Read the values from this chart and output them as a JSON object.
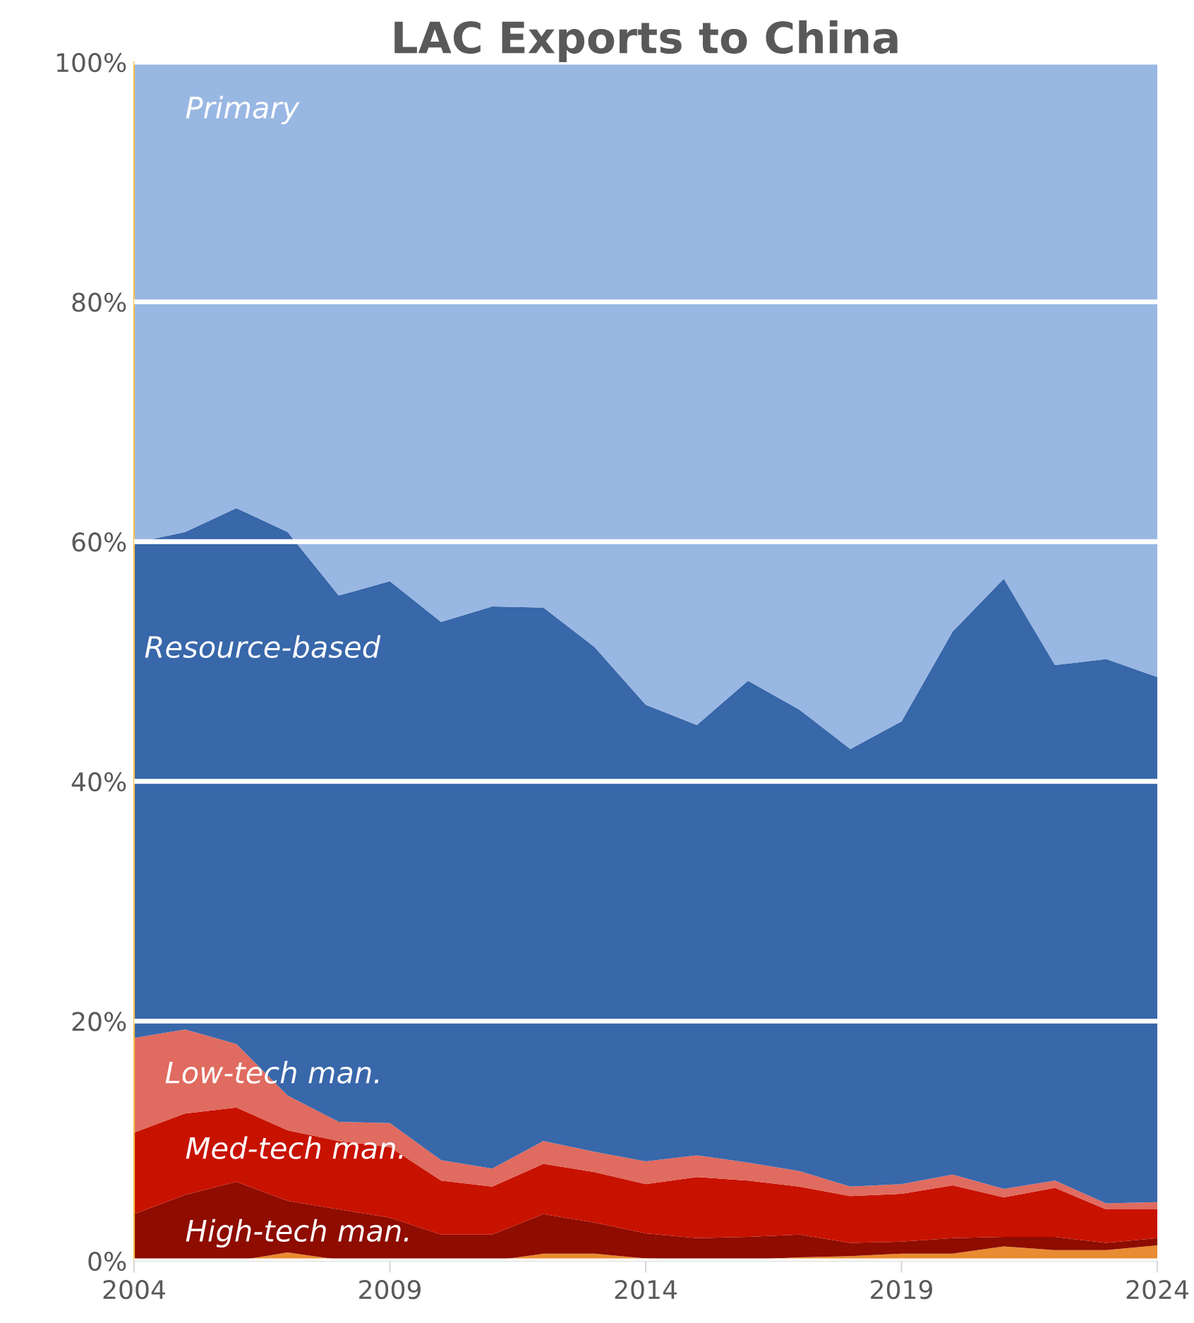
{
  "chart_data": {
    "type": "area",
    "stacked": true,
    "title": "LAC Exports to China",
    "x": [
      2004,
      2005,
      2006,
      2007,
      2008,
      2009,
      2010,
      2011,
      2012,
      2013,
      2014,
      2015,
      2016,
      2017,
      2018,
      2019,
      2020,
      2021,
      2022,
      2023,
      2024
    ],
    "series": [
      {
        "color": "#e98b32",
        "values": [
          0,
          0,
          0,
          0.7,
          0.1,
          0,
          0,
          0,
          0.6,
          0.6,
          0.2,
          0.1,
          0.1,
          0.3,
          0.4,
          0.6,
          0.6,
          1.2,
          0.9,
          0.9,
          1.3
        ]
      },
      {
        "name": "High-tech man.",
        "color": "#8e0c00",
        "values": [
          3.9,
          5.5,
          6.6,
          4.3,
          4.2,
          3.6,
          2.2,
          2.2,
          3.3,
          2.6,
          2.1,
          1.8,
          1.9,
          1.9,
          1.1,
          1.0,
          1.3,
          0.8,
          1.1,
          0.6,
          0.6
        ]
      },
      {
        "name": "Med-tech man.",
        "color": "#c81200",
        "values": [
          6.8,
          6.8,
          6.2,
          5.9,
          5.7,
          5.9,
          4.5,
          4.0,
          4.2,
          4.2,
          4.1,
          5.1,
          4.7,
          4.0,
          3.9,
          4.0,
          4.4,
          3.3,
          4.1,
          2.8,
          2.4
        ]
      },
      {
        "name": "Low-tech man.",
        "color": "#e06b60",
        "values": [
          7.9,
          7.0,
          5.3,
          2.9,
          1.6,
          2.0,
          1.7,
          1.5,
          1.9,
          1.7,
          1.9,
          1.8,
          1.5,
          1.3,
          0.8,
          0.8,
          0.9,
          0.7,
          0.6,
          0.5,
          0.6
        ]
      },
      {
        "name": "Resource-based",
        "color": "#3867aa",
        "values": [
          41.3,
          41.5,
          44.7,
          47.0,
          43.9,
          45.2,
          44.9,
          46.9,
          44.5,
          42.1,
          38.1,
          35.9,
          40.2,
          38.5,
          36.5,
          38.6,
          45.3,
          50.9,
          43.0,
          45.4,
          43.8
        ]
      },
      {
        "name": "Primary",
        "color": "#99b7e3",
        "values": [
          40.1,
          39.2,
          37.2,
          39.2,
          44.5,
          43.3,
          46.7,
          45.4,
          45.5,
          48.8,
          53.6,
          55.3,
          51.6,
          54.0,
          57.3,
          55.0,
          47.5,
          43.1,
          50.3,
          49.8,
          51.3
        ]
      }
    ],
    "xlim": [
      2004,
      2024
    ],
    "xticks": [
      2004,
      2009,
      2014,
      2019,
      2024
    ],
    "ylim": [
      0,
      100
    ],
    "yticks": [
      {
        "value": 0,
        "label": "0%"
      },
      {
        "value": 20,
        "label": "20%"
      },
      {
        "value": 40,
        "label": "40%"
      },
      {
        "value": 60,
        "label": "60%"
      },
      {
        "value": 80,
        "label": "80%"
      },
      {
        "value": 100,
        "label": "100%"
      }
    ],
    "grid": "y",
    "legend": false
  }
}
